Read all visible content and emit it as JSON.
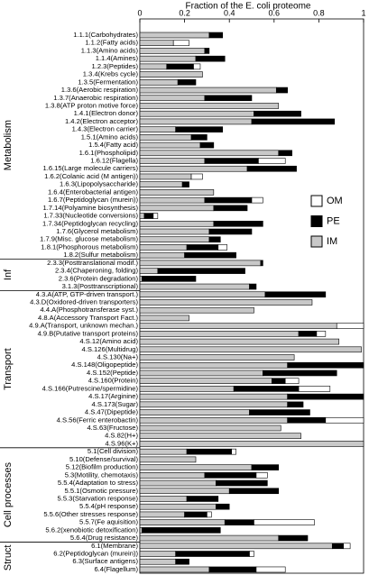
{
  "chart_data": {
    "type": "stacked-bar",
    "title": "Fraction of the E. coli proteome",
    "xlim": [
      0,
      1
    ],
    "xticks": [
      0,
      0.2,
      0.4,
      0.6,
      0.8,
      1
    ],
    "legend": "right",
    "groups": [
      {
        "name": "Metabolism",
        "categories": [
          "1.1.1(Carbohydrates)",
          "1.1.2(Fatty acids)",
          "1.1.3(Amino acids)",
          "1.1.4(Amines)",
          "1.2.3(Peptides)",
          "1.3.4(Krebs cycle)",
          "1.3.5(Fermentation)",
          "1.3.6(Aerobic respiration)",
          "1.3.7(Anaerobic respiration)",
          "1.3.8(ATP proton motive force)",
          "1.4.1(Electron donor)",
          "1.4.2(Electron acceptor)",
          "1.4.3(Electron carrier)",
          "1.5.1(Amino acids)",
          "1.5.4(Fatty acid)",
          "1.6.1(Phospholipid)",
          "1.6.12(Flagella)",
          "1.6.15(Large molecule carriers)",
          "1.6.2(Colanic acid (M antigen))",
          "1.6.3(Lipopolysaccharide)",
          "1.6.4(Enterobacterial antigen)",
          "1.6.7(Peptidoglycan (murein))",
          "1.7.14(Polyamine biosynthesis)",
          "1.7.33(Nucleotide conversions)",
          "1.7.34(Peptidoglycan recycling)",
          "1.7.6(Glycerol metabolism)",
          "1.7.9(Misc. glucose metabolism)",
          "1.8.1(Phosphorous metabolism)",
          "1.8.2(Sulfur metabolism)"
        ]
      },
      {
        "name": "Inf",
        "categories": [
          "2.3.3(Posttranslational modif.)",
          "2.3.4(Chaperoning, folding)",
          "2.3.6(Protein degradation)",
          "3.1.3(Posttranscriptional)"
        ]
      },
      {
        "name": "Transport",
        "categories": [
          "4.3.A(ATP, GTP-driven transport.)",
          "4.3.D(Oxidored-driven transporters)",
          "4.4.A(Phosphotransferase syst.)",
          "4.8.A(Accessory Transport Fact.)",
          "4.9.A(Transport, unknown mechan.)",
          "4.9.B(Putative transport proteins)",
          "4.S.12(Amino acid)",
          "4.S.126(Multidrug)",
          "4.S.130(Na+)",
          "4.S.148(Oligopeptide)",
          "4.S.152(Peptide)",
          "4.S.160(Protein)",
          "4.S.166(Putrescine/spermidine)",
          "4.S.17(Arginine)",
          "4.S.173(Sugar)",
          "4.S.47(Dipeptide)",
          "4.S.56(Ferric enterobactin)",
          "4.S.63(Fructose)",
          "4.S.82(H+)",
          "4.S.96(K+)"
        ]
      },
      {
        "name": "Cell processes",
        "categories": [
          "5.1(Cell division)",
          "5.10(Defense/survival)",
          "5.12(Biofilm production)",
          "5.3(Motility, chemotaxis)",
          "5.5.4(Adaptation to stress)",
          "5.5.1(Osmotic pressure)",
          "5.5.3(Starvation response)",
          "5.5.4(pH response)",
          "5.5.6(Other stresses response)",
          "5.5.7(Fe aquisition)",
          "5.6.2(xenobiotic detoxification)",
          "5.6.4(Drug resistance)"
        ]
      },
      {
        "name": "Struct",
        "categories": [
          "6.1(Membrane)",
          "6.2(Peptidoglycan (murein))",
          "6.3(Surface antigens)",
          "6.4(Flagellum)"
        ]
      }
    ],
    "series": [
      {
        "name": "IM",
        "color": "#c8c8c8",
        "values": [
          0.31,
          0.15,
          0.29,
          0.25,
          0.12,
          0.28,
          0.17,
          0.61,
          0.29,
          0.62,
          0.51,
          0.5,
          0.16,
          0.23,
          0.27,
          0.62,
          0.29,
          0.48,
          0.23,
          0.19,
          0.33,
          0.29,
          0.33,
          0.02,
          0.33,
          0.31,
          0.31,
          0.21,
          0.2,
          0.54,
          0.08,
          0.01,
          0.49,
          0.56,
          0.77,
          0.51,
          0.22,
          0.88,
          0.71,
          0.89,
          0.99,
          0.69,
          0.66,
          0.55,
          0.59,
          0.42,
          0.66,
          0.66,
          0.49,
          0.66,
          0.63,
          0.72,
          1.0,
          0.21,
          0.25,
          0.5,
          0.29,
          0.34,
          0.4,
          0.21,
          0.34,
          0.2,
          0.38,
          0.01,
          0.62,
          0.86,
          0.16,
          0.16,
          0.31
        ]
      },
      {
        "name": "PE",
        "color": "#000000",
        "values": [
          0.06,
          0,
          0.02,
          0.13,
          0.12,
          0,
          0.08,
          0.05,
          0.21,
          0,
          0.21,
          0.37,
          0.21,
          0.07,
          0.06,
          0.06,
          0.24,
          0.22,
          0,
          0.03,
          0,
          0.21,
          0.15,
          0.04,
          0.22,
          0.19,
          0.05,
          0.14,
          0.23,
          0.01,
          0.39,
          0.24,
          0.03,
          0.27,
          0,
          0,
          0,
          0,
          0.08,
          0,
          0,
          0,
          0.34,
          0.33,
          0.06,
          0.29,
          0.34,
          0.07,
          0.27,
          0.17,
          0,
          0,
          0,
          0.2,
          0,
          0.12,
          0.23,
          0.23,
          0.22,
          0.14,
          0.06,
          0.1,
          0.13,
          0.35,
          0.13,
          0.05,
          0.33,
          0.06,
          0.21
        ]
      },
      {
        "name": "OM",
        "color": "#ffffff",
        "values": [
          0,
          0.07,
          0,
          0,
          0.03,
          0,
          0,
          0,
          0,
          0,
          0,
          0,
          0,
          0,
          0,
          0,
          0.12,
          0,
          0.05,
          0,
          0,
          0.05,
          0,
          0.02,
          0,
          0,
          0,
          0.04,
          0,
          0,
          0,
          0,
          0,
          0,
          0,
          0,
          0,
          0.12,
          0.04,
          0,
          0,
          0,
          0,
          0,
          0.06,
          0.14,
          0,
          0,
          0,
          0.17,
          0,
          0,
          0,
          0.02,
          0,
          0,
          0.05,
          0,
          0,
          0,
          0,
          0.02,
          0.27,
          0,
          0,
          0.03,
          0.02,
          0,
          0.13
        ]
      }
    ]
  }
}
